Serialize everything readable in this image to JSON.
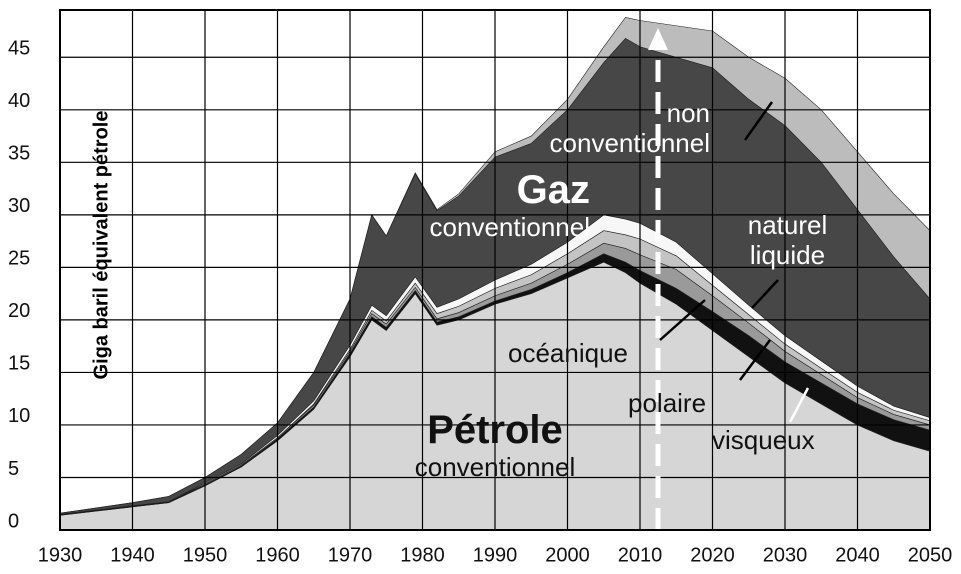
{
  "chart_data": {
    "type": "stacked_area",
    "y_label": "Giga baril équivalent pétrole",
    "x": [
      1930,
      1935,
      1940,
      1945,
      1950,
      1955,
      1960,
      1965,
      1970,
      1973,
      1975,
      1979,
      1982,
      1985,
      1990,
      1995,
      2000,
      2005,
      2008,
      2010,
      2015,
      2020,
      2025,
      2030,
      2035,
      2040,
      2045,
      2050
    ],
    "series": [
      {
        "name": "Pétrole conventionnel",
        "color": "#d6d6d6",
        "values": [
          1.4,
          1.8,
          2.2,
          2.6,
          4.2,
          6,
          8.5,
          11.5,
          16.5,
          20,
          19,
          22.5,
          19.5,
          20,
          21.5,
          22.5,
          24,
          25.5,
          24.5,
          23.5,
          21.5,
          19,
          16.5,
          14,
          12,
          10,
          8.5,
          7.5
        ]
      },
      {
        "name": "visqueux",
        "color": "#111111",
        "values": [
          0.1,
          0.1,
          0.1,
          0.1,
          0.1,
          0.1,
          0.2,
          0.2,
          0.3,
          0.3,
          0.3,
          0.3,
          0.3,
          0.3,
          0.3,
          0.4,
          0.5,
          0.8,
          1,
          1.2,
          1.5,
          1.8,
          2,
          2,
          2,
          2,
          2,
          2
        ]
      },
      {
        "name": "polaire",
        "color": "#9a9a9a",
        "values": [
          0,
          0,
          0,
          0,
          0.1,
          0.1,
          0.1,
          0.2,
          0.2,
          0.3,
          0.3,
          0.3,
          0.3,
          0.4,
          0.5,
          0.6,
          0.8,
          1,
          1.3,
          1.5,
          1.8,
          1.5,
          1.2,
          1,
          0.8,
          0.6,
          0.5,
          0.5
        ]
      },
      {
        "name": "océanique",
        "color": "#c4c4c4",
        "values": [
          0,
          0,
          0,
          0,
          0,
          0,
          0,
          0.1,
          0.2,
          0.3,
          0.3,
          0.4,
          0.5,
          0.6,
          0.7,
          0.8,
          1,
          1.2,
          1.3,
          1.5,
          1.3,
          1,
          0.8,
          0.7,
          0.6,
          0.5,
          0.4,
          0.4
        ]
      },
      {
        "name": "naturel liquide",
        "color": "#f7f7f7",
        "values": [
          0,
          0,
          0,
          0,
          0.1,
          0.1,
          0.2,
          0.3,
          0.4,
          0.5,
          0.5,
          0.6,
          0.6,
          0.7,
          0.8,
          1,
          1.1,
          1.5,
          1.5,
          1.5,
          1.3,
          1.1,
          0.9,
          0.8,
          0.7,
          0.6,
          0.4,
          0.3
        ]
      },
      {
        "name": "Gaz conventionnel",
        "color": "#474747",
        "values": [
          0.1,
          0.2,
          0.3,
          0.5,
          0.5,
          0.9,
          1.2,
          2.7,
          4.4,
          8.6,
          7.6,
          9.8,
          9.2,
          9.8,
          11.7,
          11.5,
          12.6,
          14.5,
          17.2,
          16.8,
          17.6,
          19.6,
          19.6,
          20,
          18.9,
          16.8,
          14.2,
          11.3
        ]
      },
      {
        "name": "non conventionnel",
        "color": "#bcbcbc",
        "values": [
          0,
          0,
          0,
          0,
          0,
          0,
          0,
          0,
          0,
          0,
          0,
          0.1,
          0.1,
          0.2,
          0.5,
          0.7,
          1,
          1.5,
          2,
          2.5,
          3,
          3.5,
          4,
          4.5,
          5,
          5.5,
          6,
          6.5
        ]
      }
    ],
    "xlim": [
      1930,
      2050
    ],
    "xticks": [
      1930,
      1940,
      1950,
      1960,
      1970,
      1980,
      1990,
      2000,
      2010,
      2020,
      2030,
      2040,
      2050
    ],
    "ylim": [
      0,
      49.5
    ],
    "yticks": [
      0,
      5,
      10,
      15,
      20,
      25,
      30,
      35,
      40,
      45
    ],
    "grid": true
  }
}
